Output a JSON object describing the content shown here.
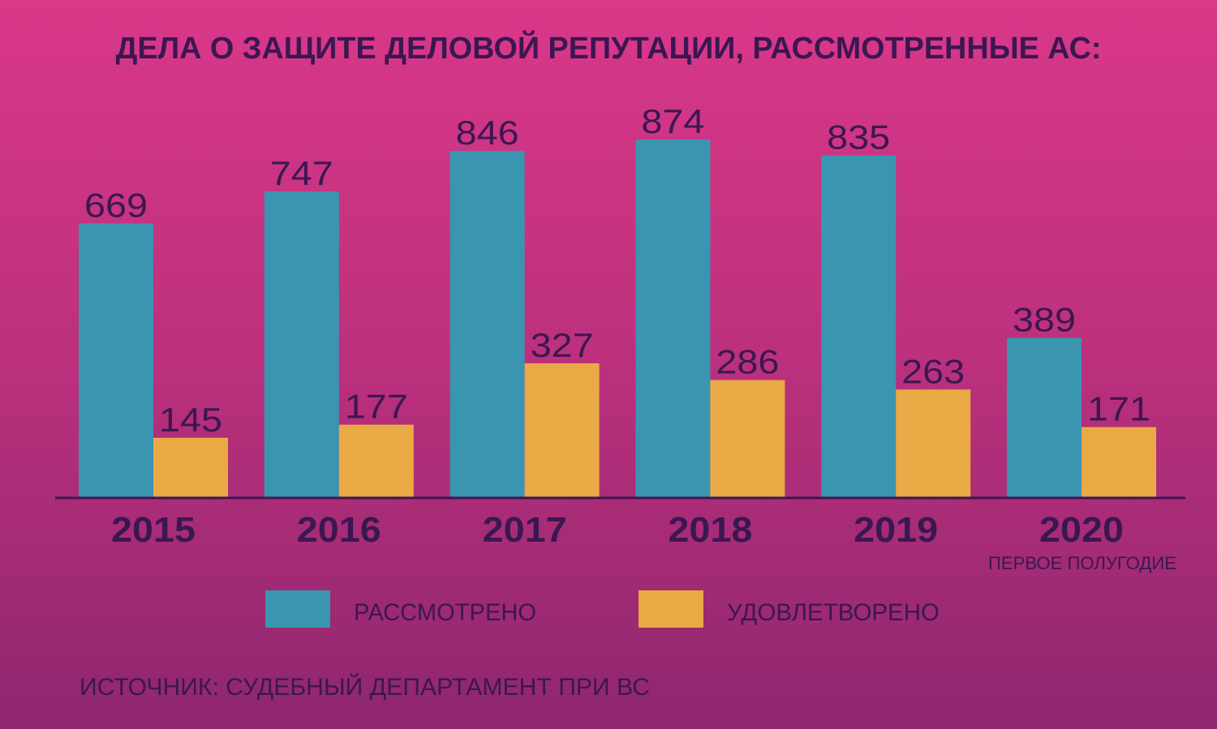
{
  "chart_data": {
    "type": "bar",
    "title": "ДЕЛА О ЗАЩИТЕ ДЕЛОВОЙ РЕПУТАЦИИ, РАССМОТРЕННЫЕ АС:",
    "categories": [
      "2015",
      "2016",
      "2017",
      "2018",
      "2019",
      "2020"
    ],
    "category_note": "ПЕРВОЕ ПОЛУГОДИЕ",
    "series": [
      {
        "name": "РАССМОТРЕНО",
        "color": "#3a95b0",
        "values": [
          669,
          747,
          846,
          874,
          835,
          389
        ]
      },
      {
        "name": "УДОВЛЕТВОРЕНО",
        "color": "#e9aa45",
        "values": [
          145,
          177,
          327,
          286,
          263,
          171
        ]
      }
    ],
    "xlabel": "",
    "ylabel": "",
    "ylim": [
      0,
      874
    ],
    "grid": false,
    "legend_position": "bottom",
    "source": "ИСТОЧНИК: СУДЕБНЫЙ ДЕПАРТАМЕНТ ПРИ ВС"
  }
}
